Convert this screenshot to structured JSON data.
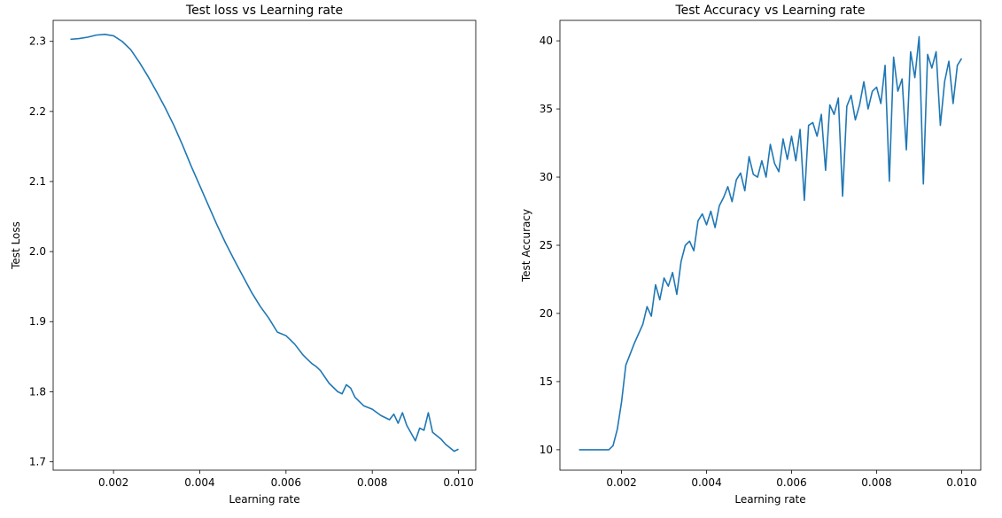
{
  "colors": {
    "line": "#1f77b4",
    "axis": "#000000",
    "background": "#ffffff"
  },
  "chart_data": [
    {
      "type": "line",
      "title": "Test loss vs Learning rate",
      "xlabel": "Learning rate",
      "ylabel": "Test Loss",
      "xlim": [
        0.0006,
        0.0104
      ],
      "ylim": [
        1.688,
        2.33
      ],
      "xticks": [
        0.002,
        0.004,
        0.006,
        0.008,
        0.01
      ],
      "xtick_labels": [
        "0.002",
        "0.004",
        "0.006",
        "0.008",
        "0.010"
      ],
      "yticks": [
        1.7,
        1.8,
        1.9,
        2.0,
        2.1,
        2.2,
        2.3
      ],
      "ytick_labels": [
        "1.7",
        "1.8",
        "1.9",
        "2.0",
        "2.1",
        "2.2",
        "2.3"
      ],
      "grid": false,
      "series": [
        {
          "x": [
            0.001,
            0.0012,
            0.0014,
            0.0016,
            0.0018,
            0.002,
            0.0022,
            0.0024,
            0.0026,
            0.0028,
            0.003,
            0.0032,
            0.0034,
            0.0036,
            0.0038,
            0.004,
            0.0042,
            0.0044,
            0.0046,
            0.0048,
            0.005,
            0.0052,
            0.0054,
            0.0056,
            0.0058,
            0.006,
            0.0062,
            0.0064,
            0.0066,
            0.0067,
            0.0068,
            0.007,
            0.0072,
            0.0073,
            0.0074,
            0.0075,
            0.0076,
            0.0078,
            0.008,
            0.0082,
            0.0084,
            0.0085,
            0.0086,
            0.0087,
            0.0088,
            0.009,
            0.0091,
            0.0092,
            0.0093,
            0.0094,
            0.0096,
            0.0097,
            0.0098,
            0.0099,
            0.01
          ],
          "y": [
            2.303,
            2.304,
            2.306,
            2.309,
            2.31,
            2.308,
            2.3,
            2.288,
            2.27,
            2.25,
            2.228,
            2.205,
            2.18,
            2.152,
            2.122,
            2.094,
            2.066,
            2.038,
            2.012,
            1.988,
            1.965,
            1.942,
            1.922,
            1.905,
            1.885,
            1.88,
            1.868,
            1.852,
            1.84,
            1.836,
            1.83,
            1.812,
            1.8,
            1.797,
            1.81,
            1.805,
            1.792,
            1.78,
            1.775,
            1.766,
            1.76,
            1.768,
            1.755,
            1.77,
            1.752,
            1.73,
            1.748,
            1.745,
            1.77,
            1.742,
            1.732,
            1.725,
            1.72,
            1.715,
            1.718
          ]
        }
      ]
    },
    {
      "type": "line",
      "title": "Test Accuracy vs Learning rate",
      "xlabel": "Learning rate",
      "ylabel": "Test Accuracy",
      "xlim": [
        0.00055,
        0.01045
      ],
      "ylim": [
        8.5,
        41.5
      ],
      "xticks": [
        0.002,
        0.004,
        0.006,
        0.008,
        0.01
      ],
      "xtick_labels": [
        "0.002",
        "0.004",
        "0.006",
        "0.008",
        "0.010"
      ],
      "yticks": [
        10,
        15,
        20,
        25,
        30,
        35,
        40
      ],
      "ytick_labels": [
        "10",
        "15",
        "20",
        "25",
        "30",
        "35",
        "40"
      ],
      "grid": false,
      "series": [
        {
          "x": [
            0.001,
            0.0012,
            0.0014,
            0.0016,
            0.0017,
            0.0018,
            0.0019,
            0.002,
            0.0021,
            0.0022,
            0.0023,
            0.0024,
            0.0025,
            0.0026,
            0.0027,
            0.0028,
            0.0029,
            0.003,
            0.0031,
            0.0032,
            0.0033,
            0.0034,
            0.0035,
            0.0036,
            0.0037,
            0.0038,
            0.0039,
            0.004,
            0.0041,
            0.0042,
            0.0043,
            0.0044,
            0.0045,
            0.0046,
            0.0047,
            0.0048,
            0.0049,
            0.005,
            0.0051,
            0.0052,
            0.0053,
            0.0054,
            0.0055,
            0.0056,
            0.0057,
            0.0058,
            0.0059,
            0.006,
            0.0061,
            0.0062,
            0.0063,
            0.0064,
            0.0065,
            0.0066,
            0.0067,
            0.0068,
            0.0069,
            0.007,
            0.0071,
            0.0072,
            0.0073,
            0.0074,
            0.0075,
            0.0076,
            0.0077,
            0.0078,
            0.0079,
            0.008,
            0.0081,
            0.0082,
            0.0083,
            0.0084,
            0.0085,
            0.0086,
            0.0087,
            0.0088,
            0.0089,
            0.009,
            0.0091,
            0.0092,
            0.0093,
            0.0094,
            0.0095,
            0.0096,
            0.0097,
            0.0098,
            0.0099,
            0.01
          ],
          "y": [
            10,
            10,
            10,
            10,
            10,
            10.3,
            11.5,
            13.5,
            16.2,
            17.0,
            17.8,
            18.5,
            19.2,
            20.5,
            19.8,
            22.1,
            21.0,
            22.6,
            22.0,
            23.0,
            21.4,
            23.8,
            25.0,
            25.3,
            24.6,
            26.8,
            27.3,
            26.5,
            27.5,
            26.3,
            27.9,
            28.5,
            29.3,
            28.2,
            29.8,
            30.3,
            29.0,
            31.5,
            30.2,
            30.0,
            31.2,
            30.0,
            32.4,
            31.0,
            30.4,
            32.8,
            31.3,
            33.0,
            31.2,
            33.5,
            28.3,
            33.8,
            34.0,
            33.0,
            34.6,
            30.5,
            35.3,
            34.6,
            35.8,
            28.6,
            35.2,
            36.0,
            34.2,
            35.3,
            37.0,
            35.0,
            36.3,
            36.6,
            35.4,
            38.2,
            29.7,
            38.8,
            36.3,
            37.2,
            32.0,
            39.2,
            37.3,
            40.3,
            29.5,
            39.0,
            38.0,
            39.2,
            33.8,
            37.0,
            38.5,
            35.4,
            38.2,
            38.7
          ]
        }
      ]
    }
  ]
}
